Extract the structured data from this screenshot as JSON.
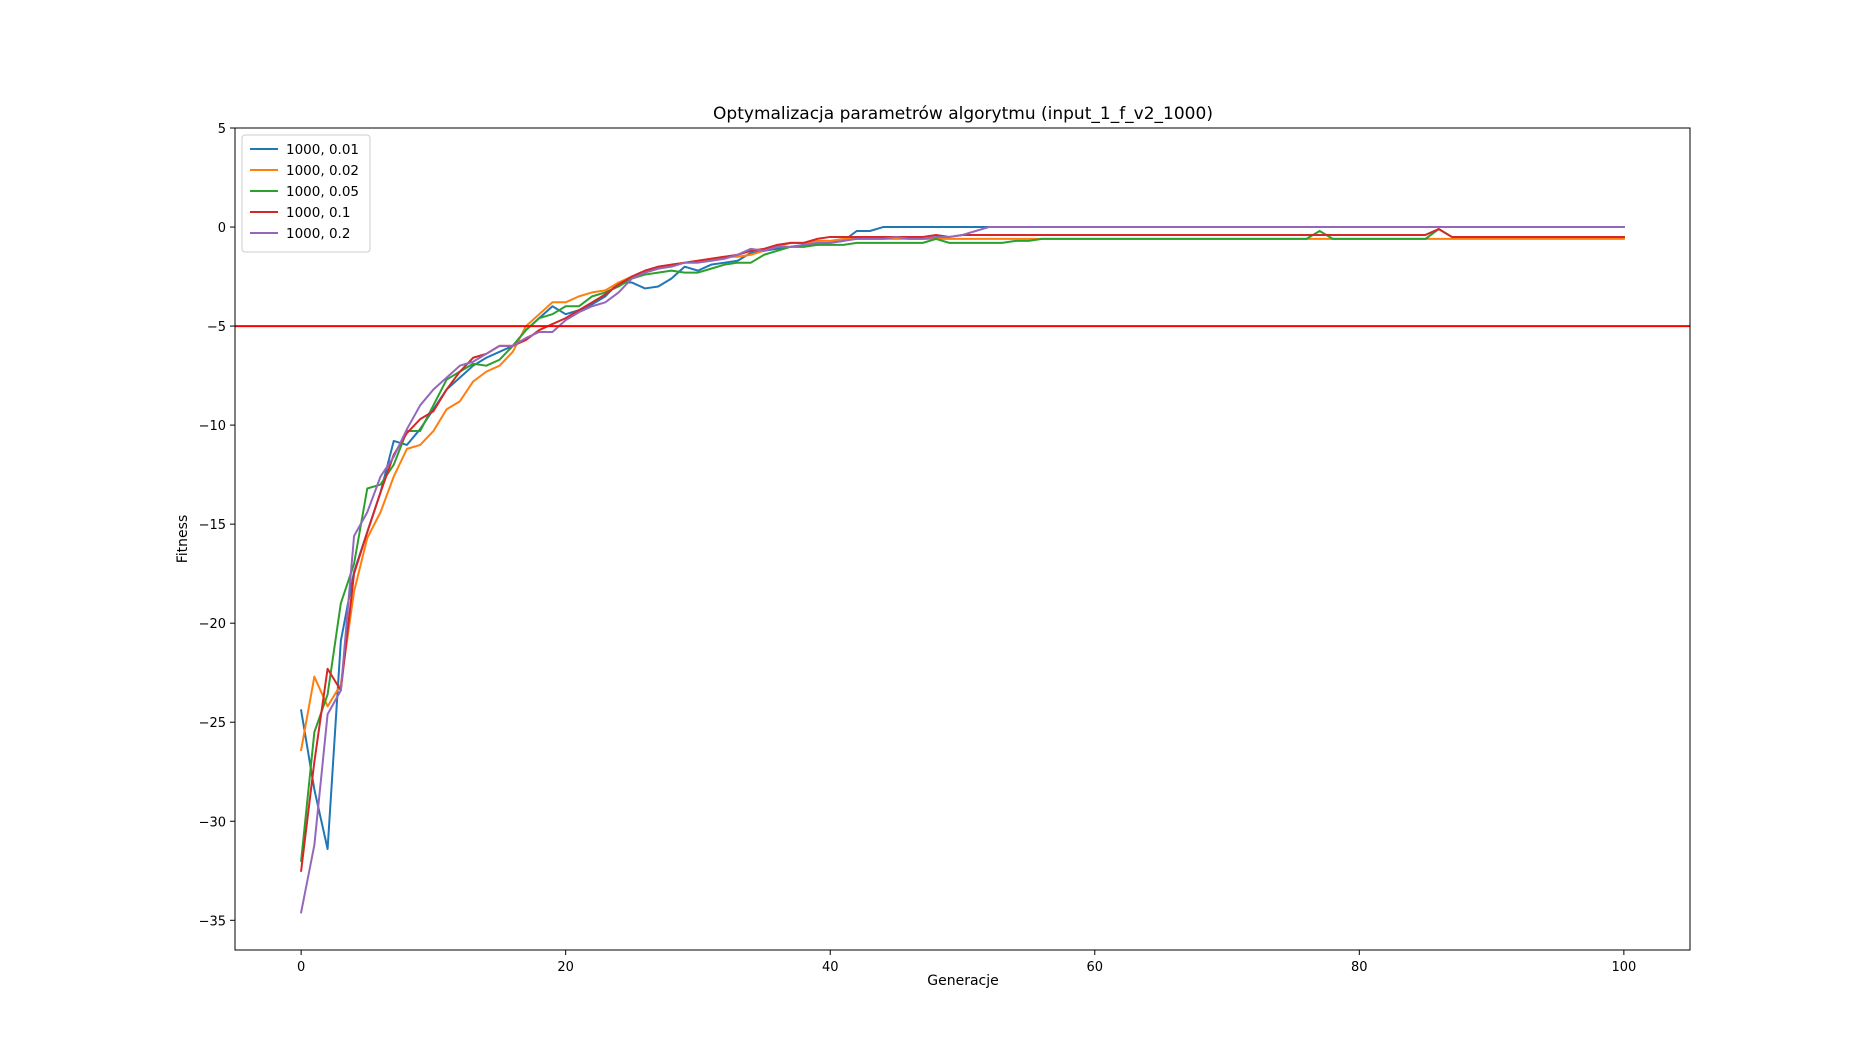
{
  "chart_data": {
    "type": "line",
    "title": "Optymalizacja parametrów algorytmu (input_1_f_v2_1000)",
    "xlabel": "Generacje",
    "ylabel": "Fitness",
    "xlim": [
      -5,
      105
    ],
    "ylim": [
      -36.5,
      5
    ],
    "xticks": [
      0,
      20,
      40,
      60,
      80,
      100
    ],
    "yticks": [
      5,
      0,
      -5,
      -10,
      -15,
      -20,
      -25,
      -30,
      -35
    ],
    "grid": false,
    "legend_position": "top-left",
    "threshold": {
      "y": -5,
      "color": "#ff0000"
    },
    "series": [
      {
        "name": "1000, 0.01",
        "color": "#1f77b4",
        "values": [
          -24.4,
          -28.4,
          -31.4,
          -20.9,
          -17.4,
          -15.4,
          -13.4,
          -10.8,
          -11.0,
          -10.2,
          -9.2,
          -8.2,
          -7.6,
          -7.0,
          -6.6,
          -6.3,
          -6.0,
          -5.2,
          -4.6,
          -4.0,
          -4.4,
          -4.2,
          -3.9,
          -3.5,
          -2.8,
          -2.8,
          -3.1,
          -3.0,
          -2.6,
          -2.0,
          -2.2,
          -1.9,
          -1.8,
          -1.7,
          -1.3,
          -1.2,
          -1.1,
          -1.0,
          -0.9,
          -0.9,
          -0.8,
          -0.7,
          -0.2,
          -0.2,
          0.0,
          0.0,
          0.0,
          0.0,
          0.0,
          0.0,
          0.0,
          0.0,
          0.0,
          0.0,
          0.0,
          0.0,
          0.0,
          0.0,
          0.0,
          0.0,
          0.0,
          0.0,
          0.0,
          0.0,
          0.0,
          0.0,
          0.0,
          0.0,
          0.0,
          0.0,
          0.0,
          0.0,
          0.0,
          0.0,
          0.0,
          0.0,
          0.0,
          0.0,
          0.0,
          0.0,
          0.0,
          0.0,
          0.0,
          0.0,
          0.0,
          0.0,
          0.0,
          0.0,
          0.0,
          0.0,
          0.0,
          0.0,
          0.0,
          0.0,
          0.0,
          0.0,
          0.0,
          0.0,
          0.0,
          0.0,
          0.0
        ]
      },
      {
        "name": "1000, 0.02",
        "color": "#ff7f0e",
        "values": [
          -26.4,
          -22.7,
          -24.2,
          -23.1,
          -18.4,
          -15.7,
          -14.4,
          -12.6,
          -11.2,
          -11.0,
          -10.3,
          -9.2,
          -8.8,
          -7.8,
          -7.3,
          -7.0,
          -6.3,
          -5.0,
          -4.4,
          -3.8,
          -3.8,
          -3.5,
          -3.3,
          -3.2,
          -2.8,
          -2.5,
          -2.3,
          -2.1,
          -1.9,
          -1.8,
          -1.7,
          -1.6,
          -1.5,
          -1.5,
          -1.4,
          -1.2,
          -1.0,
          -0.8,
          -0.8,
          -0.7,
          -0.7,
          -0.6,
          -0.6,
          -0.6,
          -0.6,
          -0.6,
          -0.6,
          -0.6,
          -0.6,
          -0.6,
          -0.6,
          -0.6,
          -0.6,
          -0.6,
          -0.6,
          -0.6,
          -0.6,
          -0.6,
          -0.6,
          -0.6,
          -0.6,
          -0.6,
          -0.6,
          -0.6,
          -0.6,
          -0.6,
          -0.6,
          -0.6,
          -0.6,
          -0.6,
          -0.6,
          -0.6,
          -0.6,
          -0.6,
          -0.6,
          -0.6,
          -0.6,
          -0.6,
          -0.6,
          -0.6,
          -0.6,
          -0.6,
          -0.6,
          -0.6,
          -0.6,
          -0.6,
          -0.6,
          -0.6,
          -0.6,
          -0.6,
          -0.6,
          -0.6,
          -0.6,
          -0.6,
          -0.6,
          -0.6,
          -0.6,
          -0.6,
          -0.6,
          -0.6,
          -0.6
        ]
      },
      {
        "name": "1000, 0.05",
        "color": "#2ca02c",
        "values": [
          -32.0,
          -25.5,
          -23.6,
          -19.0,
          -17.0,
          -13.2,
          -13.0,
          -12.0,
          -10.3,
          -10.3,
          -9.0,
          -7.7,
          -7.3,
          -6.9,
          -7.0,
          -6.7,
          -6.0,
          -5.2,
          -4.6,
          -4.4,
          -4.0,
          -4.0,
          -3.5,
          -3.3,
          -3.0,
          -2.6,
          -2.4,
          -2.3,
          -2.2,
          -2.3,
          -2.3,
          -2.1,
          -1.9,
          -1.8,
          -1.8,
          -1.4,
          -1.2,
          -1.0,
          -1.0,
          -0.9,
          -0.9,
          -0.9,
          -0.8,
          -0.8,
          -0.8,
          -0.8,
          -0.8,
          -0.8,
          -0.6,
          -0.8,
          -0.8,
          -0.8,
          -0.8,
          -0.8,
          -0.7,
          -0.7,
          -0.6,
          -0.6,
          -0.6,
          -0.6,
          -0.6,
          -0.6,
          -0.6,
          -0.6,
          -0.6,
          -0.6,
          -0.6,
          -0.6,
          -0.6,
          -0.6,
          -0.6,
          -0.6,
          -0.6,
          -0.6,
          -0.6,
          -0.6,
          -0.6,
          -0.2,
          -0.6,
          -0.6,
          -0.6,
          -0.6,
          -0.6,
          -0.6,
          -0.6,
          -0.6,
          -0.1,
          -0.5,
          -0.5,
          -0.5,
          -0.5,
          -0.5,
          -0.5,
          -0.5,
          -0.5,
          -0.5,
          -0.5,
          -0.5,
          -0.5,
          -0.5,
          -0.5
        ]
      },
      {
        "name": "1000, 0.1",
        "color": "#d62728",
        "values": [
          -32.5,
          -27.0,
          -22.3,
          -23.4,
          -17.5,
          -15.4,
          -13.4,
          -11.5,
          -10.4,
          -9.7,
          -9.3,
          -8.2,
          -7.3,
          -6.6,
          -6.4,
          -6.0,
          -6.0,
          -5.7,
          -5.2,
          -4.9,
          -4.6,
          -4.2,
          -3.8,
          -3.4,
          -2.9,
          -2.5,
          -2.2,
          -2.0,
          -1.9,
          -1.8,
          -1.7,
          -1.6,
          -1.5,
          -1.4,
          -1.2,
          -1.1,
          -0.9,
          -0.8,
          -0.8,
          -0.6,
          -0.5,
          -0.5,
          -0.5,
          -0.5,
          -0.5,
          -0.5,
          -0.5,
          -0.5,
          -0.4,
          -0.5,
          -0.4,
          -0.4,
          -0.4,
          -0.4,
          -0.4,
          -0.4,
          -0.4,
          -0.4,
          -0.4,
          -0.4,
          -0.4,
          -0.4,
          -0.4,
          -0.4,
          -0.4,
          -0.4,
          -0.4,
          -0.4,
          -0.4,
          -0.4,
          -0.4,
          -0.4,
          -0.4,
          -0.4,
          -0.4,
          -0.4,
          -0.4,
          -0.4,
          -0.4,
          -0.4,
          -0.4,
          -0.4,
          -0.4,
          -0.4,
          -0.4,
          -0.4,
          -0.1,
          -0.5,
          -0.5,
          -0.5,
          -0.5,
          -0.5,
          -0.5,
          -0.5,
          -0.5,
          -0.5,
          -0.5,
          -0.5,
          -0.5,
          -0.5,
          -0.5
        ]
      },
      {
        "name": "1000, 0.2",
        "color": "#9467bd",
        "values": [
          -34.6,
          -31.2,
          -24.6,
          -23.4,
          -15.6,
          -14.4,
          -12.6,
          -11.6,
          -10.2,
          -9.0,
          -8.2,
          -7.6,
          -7.0,
          -6.8,
          -6.4,
          -6.0,
          -6.0,
          -5.6,
          -5.3,
          -5.3,
          -4.7,
          -4.3,
          -4.0,
          -3.8,
          -3.3,
          -2.6,
          -2.3,
          -2.1,
          -2.0,
          -1.8,
          -1.8,
          -1.7,
          -1.6,
          -1.4,
          -1.1,
          -1.2,
          -1.0,
          -1.0,
          -0.9,
          -0.8,
          -0.8,
          -0.7,
          -0.6,
          -0.6,
          -0.6,
          -0.5,
          -0.6,
          -0.6,
          -0.5,
          -0.5,
          -0.4,
          -0.2,
          0.0,
          0.0,
          0.0,
          0.0,
          0.0,
          0.0,
          0.0,
          0.0,
          0.0,
          0.0,
          0.0,
          0.0,
          0.0,
          0.0,
          0.0,
          0.0,
          0.0,
          0.0,
          0.0,
          0.0,
          0.0,
          0.0,
          0.0,
          0.0,
          0.0,
          0.0,
          0.0,
          0.0,
          0.0,
          0.0,
          0.0,
          0.0,
          0.0,
          0.0,
          0.0,
          0.0,
          0.0,
          0.0,
          0.0,
          0.0,
          0.0,
          0.0,
          0.0,
          0.0,
          0.0,
          0.0,
          0.0,
          0.0,
          0.0
        ]
      }
    ]
  }
}
